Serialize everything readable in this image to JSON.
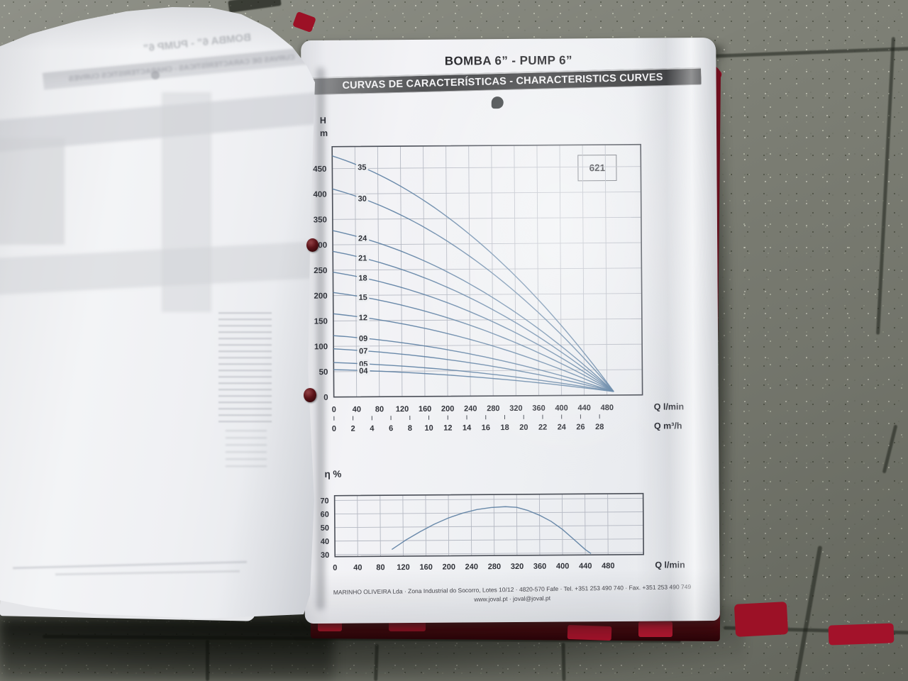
{
  "header": {
    "title": "BOMBA 6” - PUMP 6”",
    "banner": "CURVAS DE CARACTERÍSTICAS - CHARACTERISTICS CURVES"
  },
  "model_box": {
    "label": "621"
  },
  "footer": {
    "line1": "MARINHO OLIVEIRA Lda · Zona Industrial do Socorro, Lotes 10/12 · 4820-570 Fafe · Tel. +351 253 490 740 · Fax. +351 253 490 749",
    "line2": "www.joval.pt · joval@joval.pt"
  },
  "colors": {
    "curve_blue": "#5d80a3",
    "grid_gray": "#b5b9c3",
    "axis_dark": "#4a4e57",
    "binder_red": "#c21f35"
  },
  "chart_data": [
    {
      "type": "line",
      "name": "head-curves",
      "title": "621",
      "y_axis": {
        "label": "H m",
        "ticks": [
          0,
          50,
          100,
          150,
          200,
          250,
          300,
          350,
          400,
          450
        ],
        "range": [
          0,
          493
        ]
      },
      "x_axis": {
        "label_primary": "Q l/min",
        "ticks_primary": [
          0,
          40,
          80,
          120,
          160,
          200,
          240,
          280,
          320,
          360,
          400,
          440,
          480
        ],
        "label_secondary": "Q m³/h",
        "ticks_secondary": [
          0,
          2,
          4,
          6,
          8,
          10,
          12,
          14,
          16,
          18,
          20,
          22,
          24,
          26,
          28
        ]
      },
      "curves": [
        {
          "label": "35",
          "shutoff_head_m": 475
        },
        {
          "label": "30",
          "shutoff_head_m": 410
        },
        {
          "label": "24",
          "shutoff_head_m": 328
        },
        {
          "label": "21",
          "shutoff_head_m": 287
        },
        {
          "label": "18",
          "shutoff_head_m": 246
        },
        {
          "label": "15",
          "shutoff_head_m": 206
        },
        {
          "label": "12",
          "shutoff_head_m": 164
        },
        {
          "label": "09",
          "shutoff_head_m": 121
        },
        {
          "label": "07",
          "shutoff_head_m": 95
        },
        {
          "label": "05",
          "shutoff_head_m": 68
        },
        {
          "label": "04",
          "shutoff_head_m": 54
        }
      ],
      "convergence_point": {
        "q_lmin": 492,
        "h_m": 7
      }
    },
    {
      "type": "line",
      "name": "efficiency",
      "y_axis": {
        "label": "η %",
        "ticks": [
          30,
          40,
          50,
          60,
          70
        ],
        "range": [
          28.5,
          73.5
        ]
      },
      "x_axis": {
        "label": "Q l/min",
        "ticks": [
          0,
          40,
          80,
          120,
          160,
          200,
          240,
          280,
          320,
          360,
          400,
          440,
          480
        ]
      },
      "points": [
        [
          100,
          33.5
        ],
        [
          125,
          40.5
        ],
        [
          150,
          46.5
        ],
        [
          175,
          52
        ],
        [
          200,
          56.5
        ],
        [
          225,
          60
        ],
        [
          250,
          62.5
        ],
        [
          275,
          64
        ],
        [
          300,
          64.5
        ],
        [
          320,
          64
        ],
        [
          340,
          61.5
        ],
        [
          360,
          58
        ],
        [
          380,
          53.5
        ],
        [
          400,
          47.5
        ],
        [
          420,
          40
        ],
        [
          440,
          32.5
        ],
        [
          450,
          29.5
        ]
      ]
    }
  ]
}
